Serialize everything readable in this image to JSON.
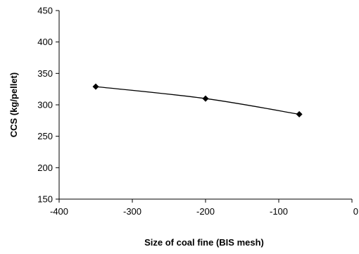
{
  "chart_data": {
    "type": "scatter",
    "title": "",
    "xlabel": "Size of coal fine (BIS mesh)",
    "ylabel": "CCS (kg/pellet)",
    "xlim": [
      -400,
      0
    ],
    "ylim": [
      150,
      450
    ],
    "x_ticks": [
      -400,
      -300,
      -200,
      -100,
      0
    ],
    "y_ticks": [
      150,
      200,
      250,
      300,
      350,
      400,
      450
    ],
    "x_tick_labels": [
      "-400",
      "-300",
      "-200",
      "-100",
      "0"
    ],
    "y_tick_labels": [
      "150",
      "200",
      "250",
      "300",
      "350",
      "400",
      "450"
    ],
    "grid": false,
    "legend": "none",
    "series": [
      {
        "marker": "diamond",
        "line": "smooth",
        "color": "#000000",
        "x": [
          -350,
          -200,
          -72
        ],
        "y": [
          329,
          310,
          285
        ]
      }
    ]
  }
}
